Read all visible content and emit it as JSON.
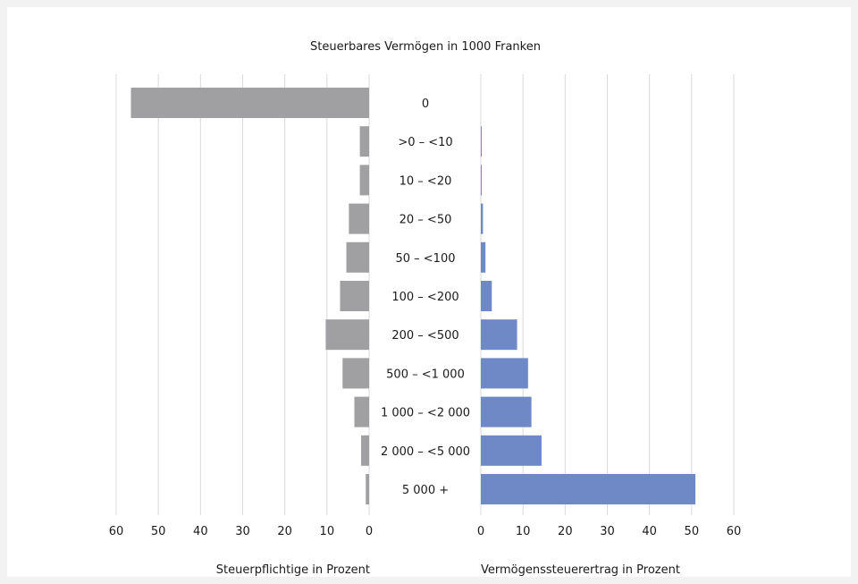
{
  "chart_data": {
    "type": "bar",
    "title": "Steuerbares Vermögen in 1000 Franken",
    "categories": [
      "0",
      ">0 – <10",
      "10 – <20",
      "20 – <50",
      "50 – <100",
      "100 – <200",
      "200 – <500",
      "500 – <1 000",
      "1 000 – <2 000",
      "2 000 – <5 000",
      "5 000 +"
    ],
    "left_panel": {
      "xlabel": "Steuerpflichtige in Prozent",
      "xlim": [
        60,
        0
      ],
      "ticks": [
        "60",
        "50",
        "40",
        "30",
        "20",
        "10",
        "0"
      ],
      "color": "#a0a0a3",
      "values": [
        56.5,
        2.2,
        2.2,
        4.8,
        5.4,
        6.9,
        10.3,
        6.3,
        3.5,
        1.9,
        0.8
      ]
    },
    "right_panel": {
      "xlabel": "Vermögenssteuerertrag in Prozent",
      "xlim": [
        0,
        60
      ],
      "ticks": [
        "0",
        "10",
        "20",
        "30",
        "40",
        "50",
        "60"
      ],
      "color": "#6e89c5",
      "values": [
        0.0,
        0.1,
        0.2,
        0.5,
        1.1,
        2.6,
        8.6,
        11.2,
        12.0,
        14.4,
        50.9
      ]
    },
    "grid": true
  }
}
